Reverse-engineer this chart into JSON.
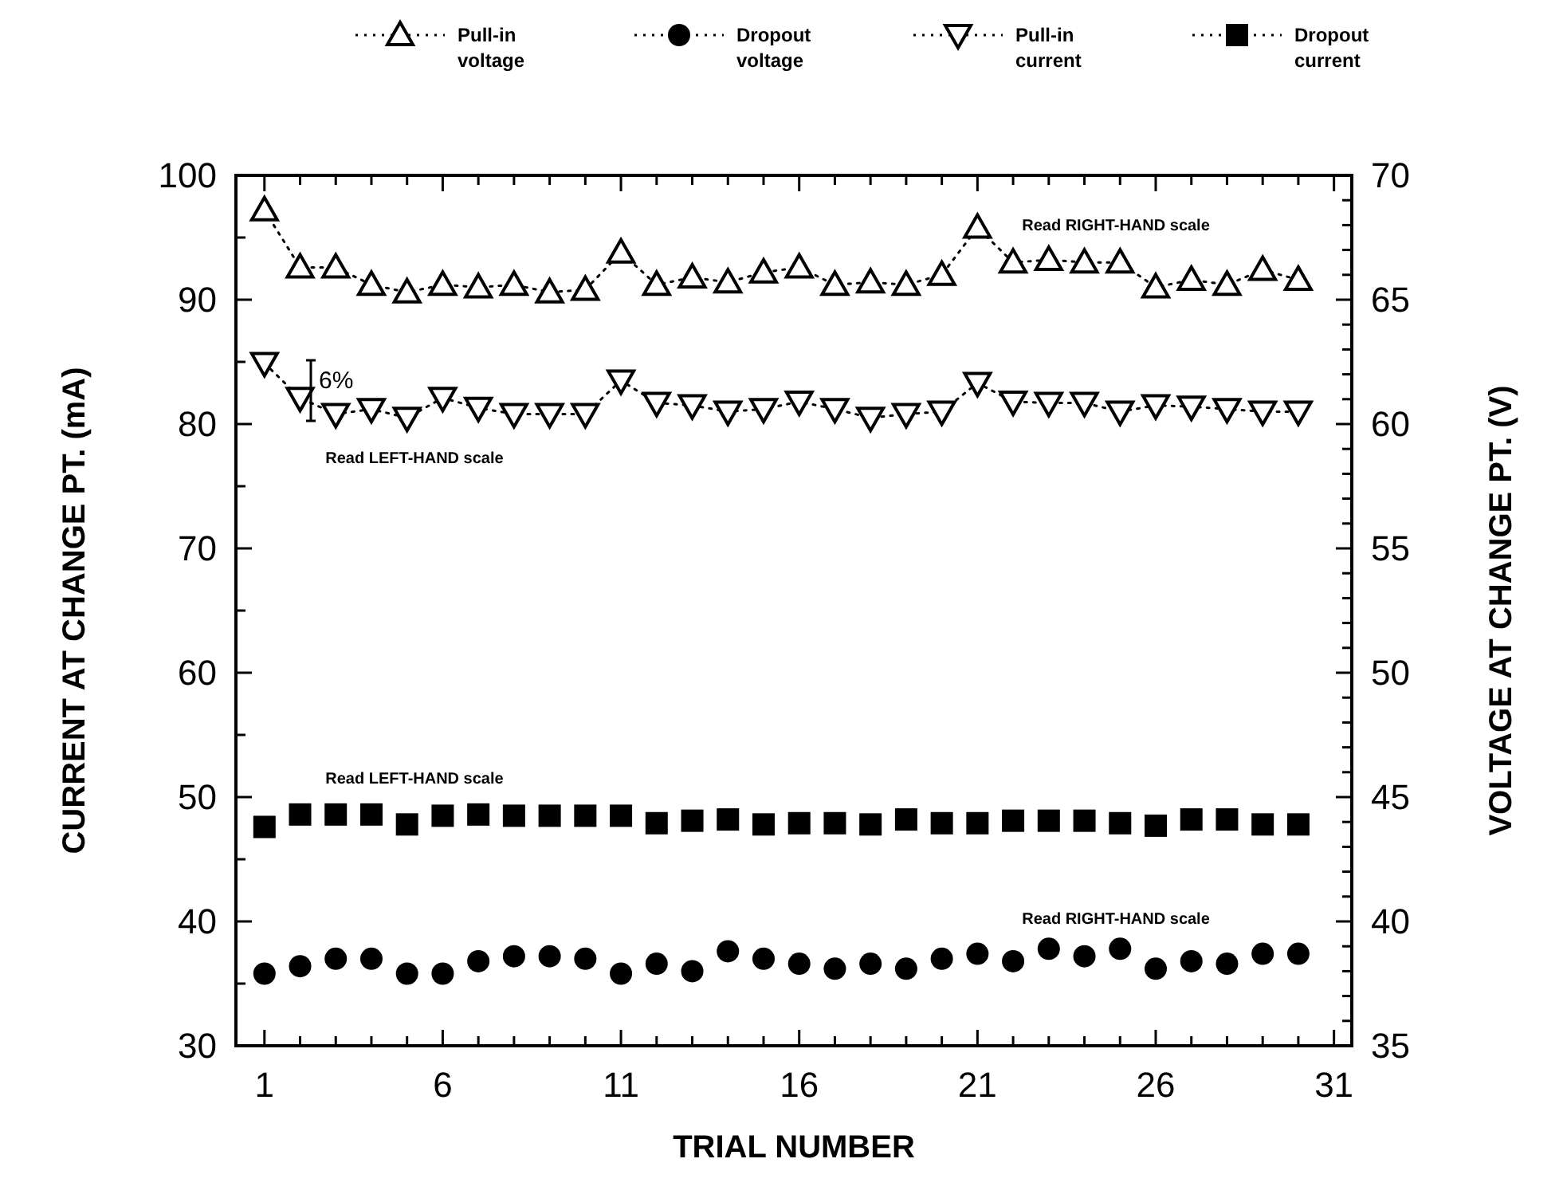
{
  "chart_data": {
    "type": "line",
    "xlabel": "TRIAL NUMBER",
    "ylabel": "CURRENT AT CHANGE PT. (mA)",
    "y2label": "VOLTAGE AT CHANGE PT. (V)",
    "x": [
      1,
      2,
      3,
      4,
      5,
      6,
      7,
      8,
      9,
      10,
      11,
      12,
      13,
      14,
      15,
      16,
      17,
      18,
      19,
      20,
      21,
      22,
      23,
      24,
      25,
      26,
      27,
      28,
      29,
      30
    ],
    "xlim": [
      0.2,
      31.5
    ],
    "xticks": [
      1,
      {
        "value": 2,
        "label": null
      },
      {
        "value": 3,
        "label": null
      },
      {
        "value": 4,
        "label": null
      },
      {
        "value": 5,
        "label": null
      },
      6,
      {
        "value": 7,
        "label": null
      },
      {
        "value": 8,
        "label": null
      },
      {
        "value": 9,
        "label": null
      },
      {
        "value": 10,
        "label": null
      },
      11,
      {
        "value": 12,
        "label": null
      },
      {
        "value": 13,
        "label": null
      },
      {
        "value": 14,
        "label": null
      },
      {
        "value": 15,
        "label": null
      },
      16,
      {
        "value": 17,
        "label": null
      },
      {
        "value": 18,
        "label": null
      },
      {
        "value": 19,
        "label": null
      },
      {
        "value": 20,
        "label": null
      },
      21,
      {
        "value": 22,
        "label": null
      },
      {
        "value": 23,
        "label": null
      },
      {
        "value": 24,
        "label": null
      },
      {
        "value": 25,
        "label": null
      },
      26,
      {
        "value": 27,
        "label": null
      },
      {
        "value": 28,
        "label": null
      },
      {
        "value": 29,
        "label": null
      },
      {
        "value": 30,
        "label": null
      },
      31
    ],
    "ylim": [
      30,
      100
    ],
    "yticks": [
      30,
      {
        "value": 35,
        "label": null
      },
      40,
      {
        "value": 45,
        "label": null
      },
      50,
      {
        "value": 55,
        "label": null
      },
      60,
      {
        "value": 65,
        "label": null
      },
      70,
      {
        "value": 75,
        "label": null
      },
      80,
      {
        "value": 85,
        "label": null
      },
      90,
      {
        "value": 95,
        "label": null
      },
      100
    ],
    "y2lim": [
      35,
      70
    ],
    "y2ticks": [
      35,
      {
        "value": 36,
        "label": null
      },
      {
        "value": 37,
        "label": null
      },
      {
        "value": 38,
        "label": null
      },
      {
        "value": 39,
        "label": null
      },
      40,
      {
        "value": 41,
        "label": null
      },
      {
        "value": 42,
        "label": null
      },
      {
        "value": 43,
        "label": null
      },
      {
        "value": 44,
        "label": null
      },
      45,
      {
        "value": 46,
        "label": null
      },
      {
        "value": 47,
        "label": null
      },
      {
        "value": 48,
        "label": null
      },
      {
        "value": 49,
        "label": null
      },
      50,
      {
        "value": 51,
        "label": null
      },
      {
        "value": 52,
        "label": null
      },
      {
        "value": 53,
        "label": null
      },
      {
        "value": 54,
        "label": null
      },
      55,
      {
        "value": 56,
        "label": null
      },
      {
        "value": 57,
        "label": null
      },
      {
        "value": 58,
        "label": null
      },
      {
        "value": 59,
        "label": null
      },
      60,
      {
        "value": 61,
        "label": null
      },
      {
        "value": 62,
        "label": null
      },
      {
        "value": 63,
        "label": null
      },
      {
        "value": 64,
        "label": null
      },
      65,
      {
        "value": 66,
        "label": null
      },
      {
        "value": 67,
        "label": null
      },
      {
        "value": 68,
        "label": null
      },
      {
        "value": 69,
        "label": null
      },
      70
    ],
    "legend": "top",
    "line_style": "dotted",
    "grid": false,
    "series": [
      {
        "name": "Pull-in voltage",
        "axis": "y2",
        "marker": "triangle",
        "color": "#000000",
        "values": [
          68.6,
          66.3,
          66.3,
          65.6,
          65.3,
          65.6,
          65.5,
          65.6,
          65.3,
          65.4,
          66.9,
          65.6,
          65.9,
          65.7,
          66.1,
          66.3,
          65.6,
          65.7,
          65.6,
          66.0,
          67.9,
          66.5,
          66.6,
          66.5,
          66.5,
          65.5,
          65.8,
          65.6,
          66.2,
          65.8
        ]
      },
      {
        "name": "Dropout voltage",
        "type": "scatter",
        "axis": "y2",
        "marker": "circle",
        "color": "#000000",
        "values": [
          37.9,
          38.2,
          38.5,
          38.5,
          37.9,
          37.9,
          38.4,
          38.6,
          38.6,
          38.5,
          37.9,
          38.3,
          38.0,
          38.8,
          38.5,
          38.3,
          38.1,
          38.3,
          38.1,
          38.5,
          38.7,
          38.4,
          38.9,
          38.6,
          38.9,
          38.1,
          38.4,
          38.3,
          38.7,
          38.7
        ]
      },
      {
        "name": "Pull-in current",
        "axis": "y",
        "marker": "triangle-down",
        "color": "#000000",
        "values": [
          84.9,
          82.1,
          80.8,
          81.2,
          80.5,
          82.1,
          81.3,
          80.8,
          80.8,
          80.8,
          83.5,
          81.7,
          81.5,
          81.0,
          81.2,
          81.8,
          81.2,
          80.5,
          80.8,
          81.0,
          83.3,
          81.8,
          81.7,
          81.7,
          81.0,
          81.5,
          81.4,
          81.2,
          81.0,
          81.0
        ]
      },
      {
        "name": "Dropout current",
        "type": "scatter",
        "axis": "y",
        "marker": "square",
        "color": "#000000",
        "values": [
          47.6,
          48.6,
          48.6,
          48.6,
          47.8,
          48.5,
          48.6,
          48.5,
          48.5,
          48.5,
          48.5,
          47.9,
          48.1,
          48.2,
          47.8,
          47.9,
          47.9,
          47.8,
          48.2,
          47.9,
          47.9,
          48.1,
          48.1,
          48.1,
          47.9,
          47.7,
          48.2,
          48.2,
          47.8,
          47.8
        ]
      }
    ],
    "annotations": [
      "Read RIGHT-HAND scale",
      "6%",
      "Read LEFT-HAND scale",
      "Read LEFT-HAND scale",
      "Read RIGHT-HAND scale"
    ]
  }
}
